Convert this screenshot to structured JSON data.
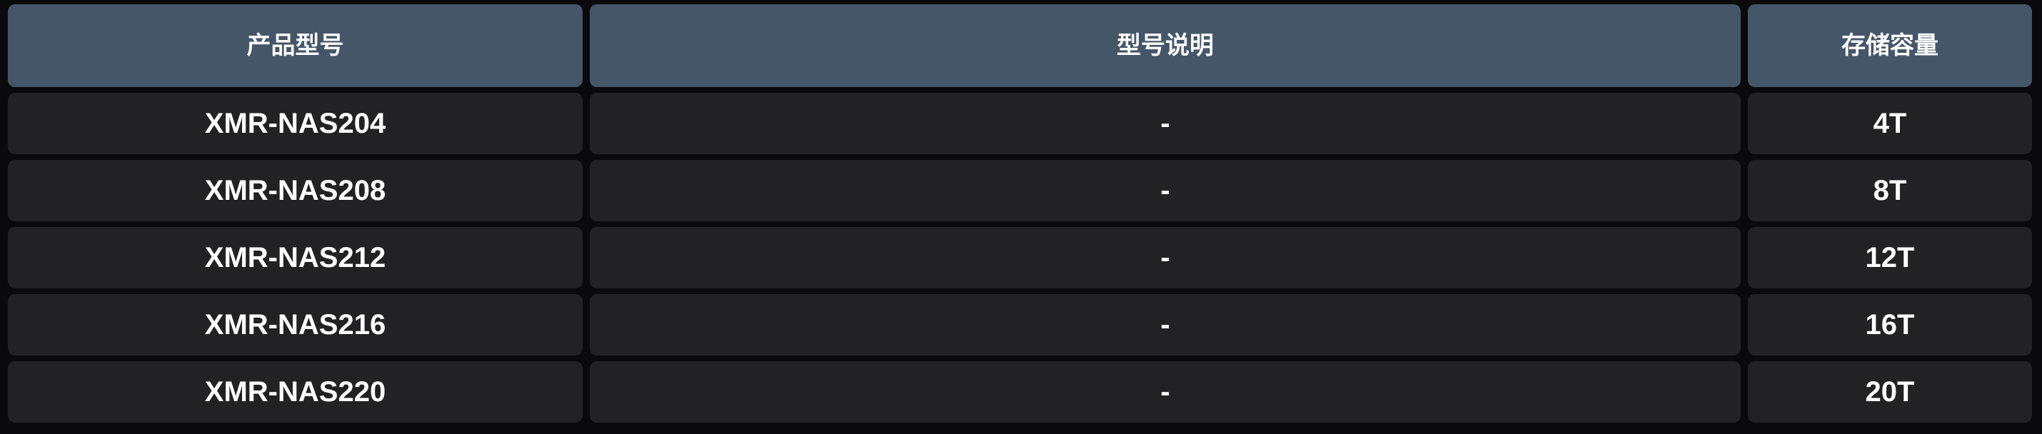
{
  "table": {
    "columns": [
      {
        "label": "产品型号"
      },
      {
        "label": "型号说明"
      },
      {
        "label": "存储容量"
      }
    ],
    "rows": [
      {
        "model": "XMR-NAS204",
        "description": "-",
        "capacity": "4T"
      },
      {
        "model": "XMR-NAS208",
        "description": "-",
        "capacity": "8T"
      },
      {
        "model": "XMR-NAS212",
        "description": "-",
        "capacity": "12T"
      },
      {
        "model": "XMR-NAS216",
        "description": "-",
        "capacity": "16T"
      },
      {
        "model": "XMR-NAS220",
        "description": "-",
        "capacity": "20T"
      }
    ]
  },
  "colors": {
    "page_background": "#0a0a0c",
    "header_background": "#455668",
    "cell_background": "#222224",
    "text": "#ffffff"
  }
}
